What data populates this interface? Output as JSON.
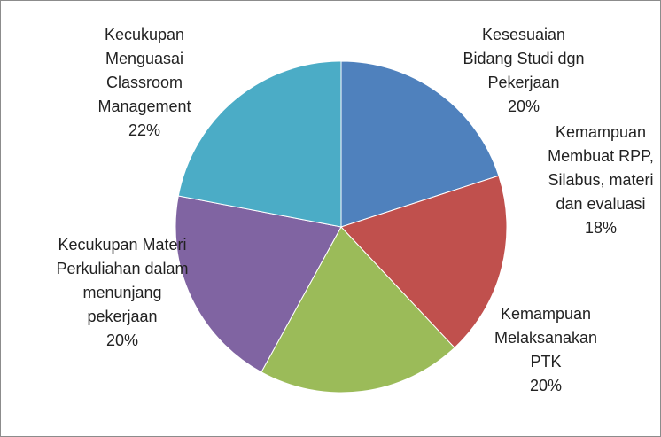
{
  "chart_data": {
    "type": "pie",
    "categories": [
      "Kesesuaian Bidang Studi dgn Pekerjaan",
      "Kemampuan Membuat RPP, Silabus, materi dan evaluasi",
      "Kemampuan Melaksanakan PTK",
      "Kecukupan Materi Perkuliahan dalam menunjang pekerjaan",
      "Kecukupan Menguasai Classroom Management"
    ],
    "values": [
      20,
      18,
      20,
      20,
      22
    ],
    "value_labels": [
      "20%",
      "18%",
      "20%",
      "20%",
      "22%"
    ],
    "colors": [
      "#4f81bd",
      "#c0504d",
      "#9bbb59",
      "#8064a2",
      "#4bacc6"
    ]
  }
}
